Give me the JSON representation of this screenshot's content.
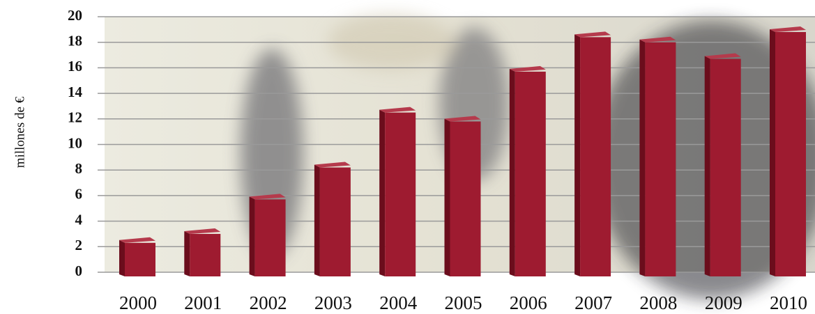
{
  "chart_data": {
    "type": "bar3d",
    "y_label": "millones de €",
    "categories": [
      "2000",
      "2001",
      "2002",
      "2003",
      "2004",
      "2005",
      "2006",
      "2007",
      "2008",
      "2009",
      "2010"
    ],
    "values": [
      2.3,
      3.0,
      5.7,
      8.2,
      12.5,
      11.8,
      15.7,
      18.4,
      18.0,
      16.7,
      18.8
    ],
    "color": "#9e1b30",
    "ylim": [
      0,
      20
    ],
    "yticks": [
      0,
      2,
      4,
      6,
      8,
      10,
      12,
      14,
      16,
      18,
      20
    ],
    "grid": true
  }
}
